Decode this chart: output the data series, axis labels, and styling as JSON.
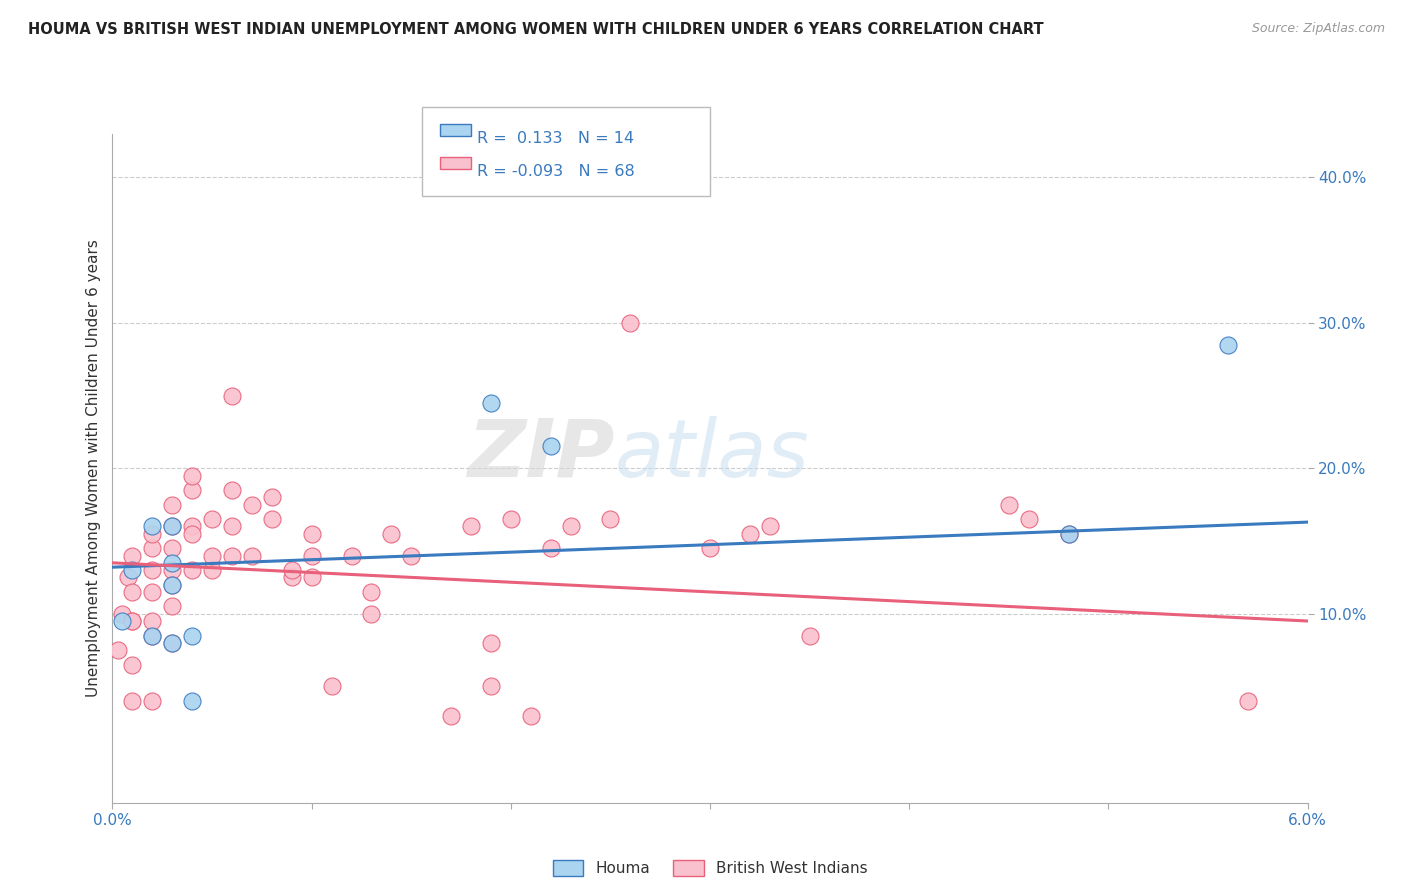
{
  "title": "HOUMA VS BRITISH WEST INDIAN UNEMPLOYMENT AMONG WOMEN WITH CHILDREN UNDER 6 YEARS CORRELATION CHART",
  "source": "Source: ZipAtlas.com",
  "ylabel": "Unemployment Among Women with Children Under 6 years",
  "xlim": [
    0.0,
    0.06
  ],
  "ylim": [
    -0.03,
    0.43
  ],
  "houma_R": 0.133,
  "houma_N": 14,
  "bwi_R": -0.093,
  "bwi_N": 68,
  "houma_color": "#aad4f0",
  "bwi_color": "#f9c0ce",
  "houma_line_color": "#3a7abf",
  "bwi_line_color": "#e8607a",
  "legend_label_houma": "Houma",
  "legend_label_bwi": "British West Indians",
  "watermark_zip": "ZIP",
  "watermark_atlas": "atlas",
  "houma_x": [
    0.0005,
    0.001,
    0.002,
    0.002,
    0.003,
    0.003,
    0.003,
    0.003,
    0.004,
    0.004,
    0.019,
    0.022,
    0.048,
    0.056
  ],
  "houma_y": [
    0.095,
    0.13,
    0.085,
    0.16,
    0.12,
    0.08,
    0.16,
    0.135,
    0.085,
    0.04,
    0.245,
    0.215,
    0.155,
    0.285
  ],
  "bwi_x": [
    0.0003,
    0.0005,
    0.0008,
    0.001,
    0.001,
    0.001,
    0.001,
    0.001,
    0.001,
    0.002,
    0.002,
    0.002,
    0.002,
    0.002,
    0.002,
    0.002,
    0.003,
    0.003,
    0.003,
    0.003,
    0.003,
    0.003,
    0.003,
    0.004,
    0.004,
    0.004,
    0.004,
    0.004,
    0.005,
    0.005,
    0.005,
    0.006,
    0.006,
    0.006,
    0.006,
    0.007,
    0.007,
    0.008,
    0.008,
    0.009,
    0.009,
    0.01,
    0.01,
    0.01,
    0.011,
    0.012,
    0.013,
    0.013,
    0.014,
    0.015,
    0.017,
    0.018,
    0.019,
    0.019,
    0.02,
    0.021,
    0.022,
    0.023,
    0.025,
    0.026,
    0.03,
    0.032,
    0.033,
    0.035,
    0.045,
    0.046,
    0.048,
    0.057
  ],
  "bwi_y": [
    0.075,
    0.1,
    0.125,
    0.14,
    0.095,
    0.065,
    0.04,
    0.115,
    0.095,
    0.085,
    0.13,
    0.145,
    0.115,
    0.155,
    0.095,
    0.04,
    0.13,
    0.12,
    0.105,
    0.145,
    0.16,
    0.175,
    0.08,
    0.13,
    0.16,
    0.185,
    0.155,
    0.195,
    0.13,
    0.165,
    0.14,
    0.16,
    0.14,
    0.185,
    0.25,
    0.14,
    0.175,
    0.165,
    0.18,
    0.125,
    0.13,
    0.125,
    0.155,
    0.14,
    0.05,
    0.14,
    0.1,
    0.115,
    0.155,
    0.14,
    0.03,
    0.16,
    0.05,
    0.08,
    0.165,
    0.03,
    0.145,
    0.16,
    0.165,
    0.3,
    0.145,
    0.155,
    0.16,
    0.085,
    0.175,
    0.165,
    0.155,
    0.04
  ],
  "houma_line_x0": 0.0,
  "houma_line_y0": 0.132,
  "houma_line_x1": 0.06,
  "houma_line_y1": 0.163,
  "bwi_line_x0": 0.0,
  "bwi_line_y0": 0.135,
  "bwi_line_x1": 0.06,
  "bwi_line_y1": 0.095
}
